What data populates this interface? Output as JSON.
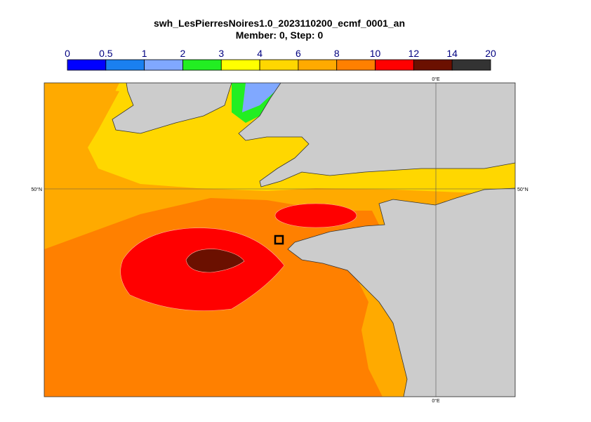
{
  "header": {
    "title": "swh_LesPierresNoires1.0_2023110200_ecmf_0001_an",
    "subtitle": "Member: 0, Step: 0"
  },
  "legend": {
    "levels": [
      0,
      0.5,
      1,
      2,
      3,
      4,
      6,
      8,
      10,
      12,
      14,
      20
    ],
    "colors": [
      "#0000ff",
      "#1a80f0",
      "#80a8ff",
      "#22ee22",
      "#ffff00",
      "#ffd700",
      "#ffaa00",
      "#ff8000",
      "#ff0000",
      "#6b1000",
      "#333333"
    ]
  },
  "map": {
    "lon_label": "0°E",
    "lat_label": "50°N"
  }
}
